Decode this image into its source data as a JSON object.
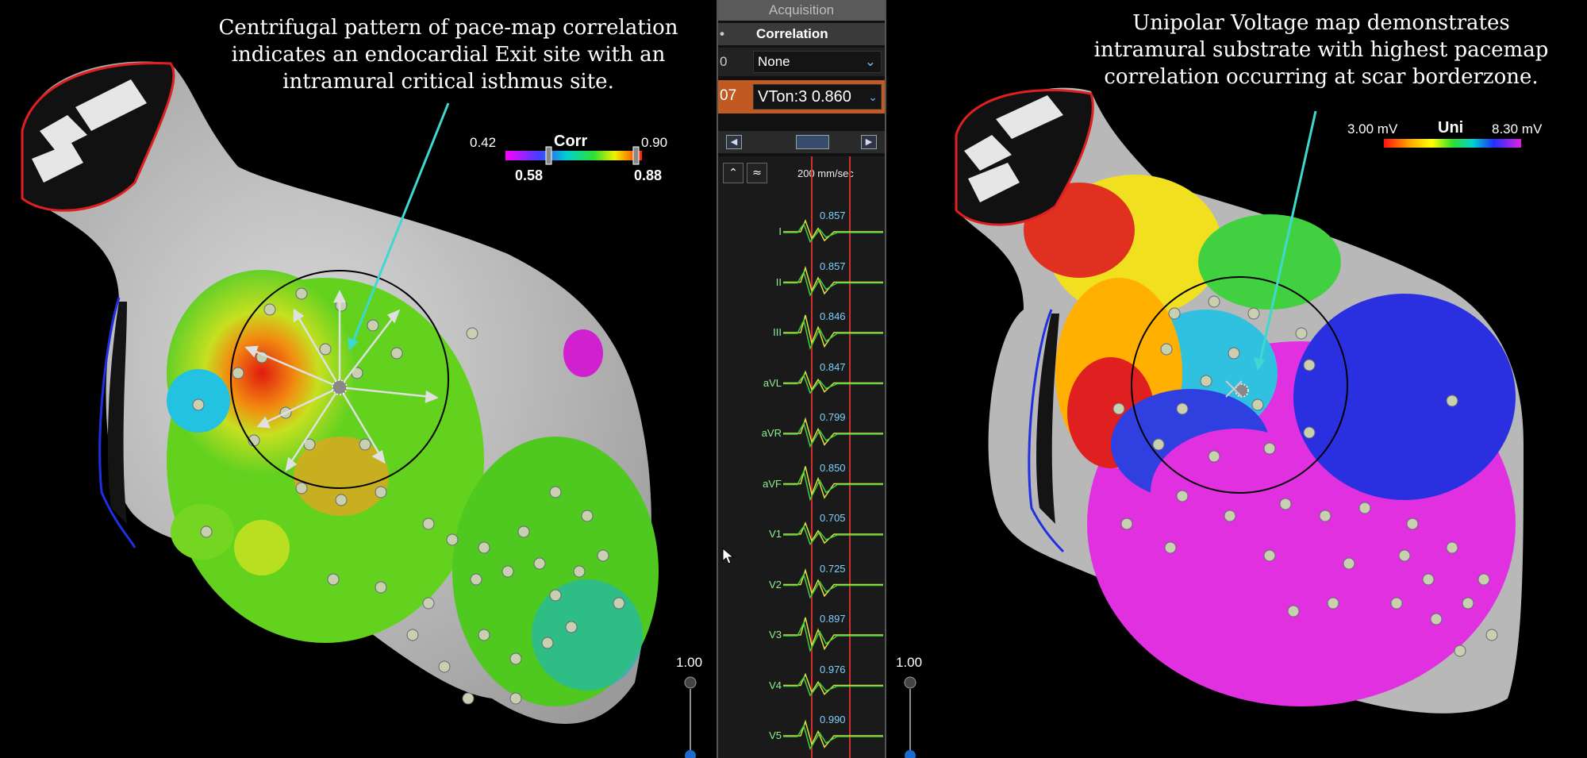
{
  "left_annotation": {
    "line1": "Centrifugal pattern of pace-map correlation",
    "line2": "indicates an endocardial Exit site with an",
    "line3": "intramural critical isthmus site."
  },
  "right_annotation": {
    "line1": "Unipolar Voltage map demonstrates",
    "line2": "intramural substrate with highest pacemap",
    "line3": "correlation occurring at scar borderzone."
  },
  "corr_scale": {
    "title": "Corr",
    "min": "0.42",
    "max": "0.90",
    "low_threshold": "0.58",
    "high_threshold": "0.88"
  },
  "uni_scale": {
    "title": "Uni",
    "min": "3.00 mV",
    "max": "8.30 mV"
  },
  "zoom_left": "1.00",
  "zoom_right": "1.00",
  "panel": {
    "acquisition": "Acquisition",
    "correlation_header": "Correlation",
    "row1_index": "0",
    "row1_select": "None",
    "row2_index": "07",
    "row2_select": "VTon:3  0.860",
    "speed": "200 mm/sec",
    "leads": [
      {
        "name": "I",
        "value": "0.857"
      },
      {
        "name": "II",
        "value": "0.857"
      },
      {
        "name": "III",
        "value": "0.846"
      },
      {
        "name": "aVL",
        "value": "0.847"
      },
      {
        "name": "aVR",
        "value": "0.799"
      },
      {
        "name": "aVF",
        "value": "0.850"
      },
      {
        "name": "V1",
        "value": "0.705"
      },
      {
        "name": "V2",
        "value": "0.725"
      },
      {
        "name": "V3",
        "value": "0.897"
      },
      {
        "name": "V4",
        "value": "0.976"
      },
      {
        "name": "V5",
        "value": "0.990"
      }
    ]
  },
  "colors": {
    "accent_orange": "#c05a22",
    "annotation_arrow": "#3fd8d0",
    "outline_red": "#e02020",
    "outline_blue": "#2030e0"
  }
}
